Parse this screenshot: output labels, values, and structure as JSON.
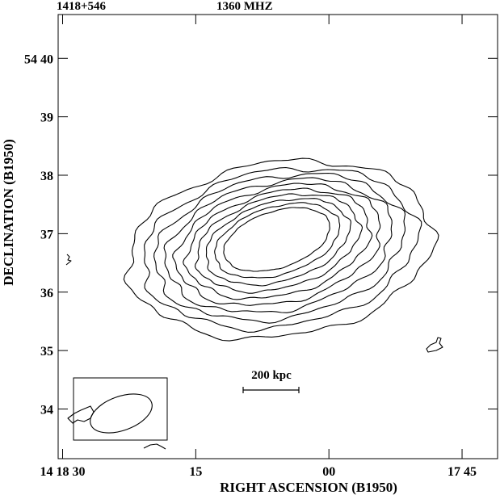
{
  "chart_data": {
    "type": "contour",
    "title_source": "1418+546",
    "title_frequency": "1360 MHZ",
    "xlabel": "RIGHT ASCENSION (B1950)",
    "ylabel": "DECLINATION (B1950)",
    "x_ticks": [
      {
        "label": "14 18 30",
        "ra_sec": 30
      },
      {
        "label": "15",
        "ra_sec": 15
      },
      {
        "label": "00",
        "ra_sec": 0
      },
      {
        "label": "17 45",
        "ra_sec": -15
      }
    ],
    "y_ticks": [
      {
        "label": "54 40",
        "dec_min": 40
      },
      {
        "label": "39",
        "dec_min": 39
      },
      {
        "label": "38",
        "dec_min": 38
      },
      {
        "label": "37",
        "dec_min": 37
      },
      {
        "label": "36",
        "dec_min": 36
      },
      {
        "label": "35",
        "dec_min": 35
      },
      {
        "label": "34",
        "dec_min": 34
      }
    ],
    "xlim": [
      30.5,
      -19
    ],
    "ylim": [
      33.15,
      40.75
    ],
    "scale_bar": {
      "label": "200 kpc"
    },
    "contour_levels": 10,
    "source_center": {
      "ra_sec": 5.5,
      "dec_min": 36.9
    },
    "beam": {
      "inset": true,
      "ellipse": true
    }
  }
}
